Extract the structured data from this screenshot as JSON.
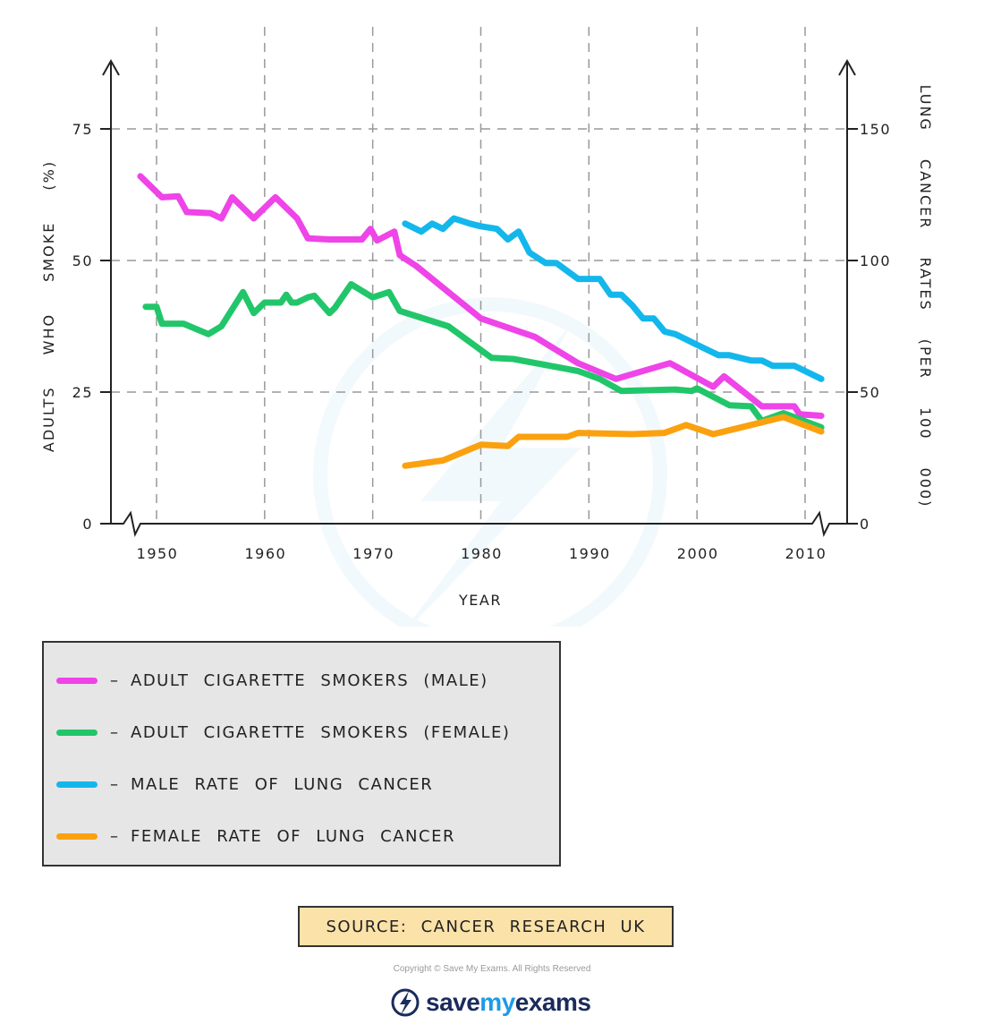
{
  "chart_data": {
    "type": "line",
    "xlabel": "YEAR",
    "ylabel_left": "ADULTS WHO SMOKE (%)",
    "ylabel_right": "LUNG CANCER RATES (PER 100 000)",
    "x_ticks": [
      1950,
      1960,
      1970,
      1980,
      1990,
      2000,
      2010
    ],
    "x_range": [
      1946,
      2012
    ],
    "y_left_ticks": [
      0,
      25,
      50,
      75
    ],
    "y_left_range": [
      0,
      75
    ],
    "y_right_ticks": [
      0,
      50,
      100,
      150
    ],
    "y_right_range": [
      0,
      150
    ],
    "grid": true,
    "series": [
      {
        "name": "ADULT CIGARETTE SMOKERS (MALE)",
        "axis": "left",
        "color": "#ee44e8",
        "x": [
          1948.5,
          1950.5,
          1952,
          1952.8,
          1955,
          1956,
          1957,
          1959,
          1961,
          1963,
          1964,
          1966,
          1969,
          1969.8,
          1970.4,
          1972,
          1972.5,
          1974,
          1980,
          1985,
          1989,
          1992.5,
          1997.5,
          2001.5,
          2002.5,
          2006,
          2009,
          2009.5,
          2011.5
        ],
        "y": [
          66,
          62,
          62.2,
          59.2,
          59,
          58,
          62,
          58,
          62,
          58,
          54.2,
          54,
          54,
          56,
          53.8,
          55.5,
          51,
          49,
          39,
          35.5,
          30.5,
          27.5,
          30.5,
          26,
          28,
          22.3,
          22.3,
          20.8,
          20.5
        ]
      },
      {
        "name": "ADULT CIGARETTE SMOKERS (FEMALE)",
        "axis": "left",
        "color": "#22c66a",
        "x": [
          1949,
          1950,
          1950.5,
          1952.5,
          1954.8,
          1956,
          1958,
          1959,
          1960,
          1961.5,
          1962,
          1962.5,
          1963,
          1964,
          1964.6,
          1966,
          1966.5,
          1968,
          1970,
          1971.5,
          1972.5,
          1977,
          1981,
          1983,
          1989,
          1991,
          1993,
          1998,
          1999.5,
          2000,
          2003,
          2005,
          2006,
          2008,
          2011.5
        ],
        "y": [
          41.2,
          41.2,
          38,
          38,
          36,
          37.5,
          44,
          40,
          42,
          42,
          43.5,
          42,
          42,
          43,
          43.3,
          40,
          41,
          45.5,
          43,
          44,
          40.4,
          37.5,
          31.5,
          31.3,
          29,
          27.5,
          25.2,
          25.5,
          25.2,
          25.7,
          22.5,
          22.3,
          19.5,
          21,
          18.3
        ]
      },
      {
        "name": "MALE RATE OF LUNG CANCER",
        "axis": "right",
        "color": "#13b7eb",
        "x": [
          1973,
          1974.5,
          1975.5,
          1976.5,
          1977.5,
          1979,
          1980,
          1981.5,
          1982.5,
          1983.5,
          1984.5,
          1986,
          1987,
          1989,
          1991,
          1992,
          1993,
          1994,
          1995,
          1996,
          1997,
          1998,
          1999,
          2000,
          2001,
          2002,
          2003,
          2004,
          2005,
          2006,
          2007,
          2008,
          2009,
          2011.5
        ],
        "y": [
          114,
          111,
          114,
          112,
          116,
          114,
          113,
          112,
          108,
          111,
          103,
          99,
          99,
          93,
          93,
          87,
          87,
          83,
          78,
          78,
          73,
          72,
          70,
          68,
          66,
          64,
          64,
          63,
          62,
          62,
          60,
          60,
          60,
          55
        ]
      },
      {
        "name": "FEMALE RATE OF LUNG CANCER",
        "axis": "right",
        "color": "#fba10f",
        "x": [
          1973,
          1976.5,
          1980,
          1982.5,
          1983.5,
          1988,
          1989,
          1994,
          1997,
          1999,
          2001.5,
          2004,
          2008,
          2011.5
        ],
        "y": [
          22,
          24,
          30,
          29.5,
          33,
          33,
          34.5,
          34,
          34.5,
          37.5,
          34,
          36.5,
          40.5,
          35
        ]
      }
    ]
  },
  "legend": {
    "dash": "–",
    "items": [
      {
        "label": "ADULT CIGARETTE SMOKERS (MALE)",
        "color": "#ee44e8"
      },
      {
        "label": "ADULT CIGARETTE SMOKERS (FEMALE)",
        "color": "#22c66a"
      },
      {
        "label": "MALE RATE OF LUNG CANCER",
        "color": "#13b7eb"
      },
      {
        "label": "FEMALE RATE OF LUNG CANCER",
        "color": "#fba10f"
      }
    ]
  },
  "source": "SOURCE: CANCER RESEARCH UK",
  "copyright": "Copyright © Save My Exams. All Rights Reserved",
  "brand": {
    "name_part1": "save",
    "name_part2": "my",
    "name_part3": "exams",
    "icon": "lightning-bolt-icon",
    "accent_color": "#1d9be6"
  }
}
